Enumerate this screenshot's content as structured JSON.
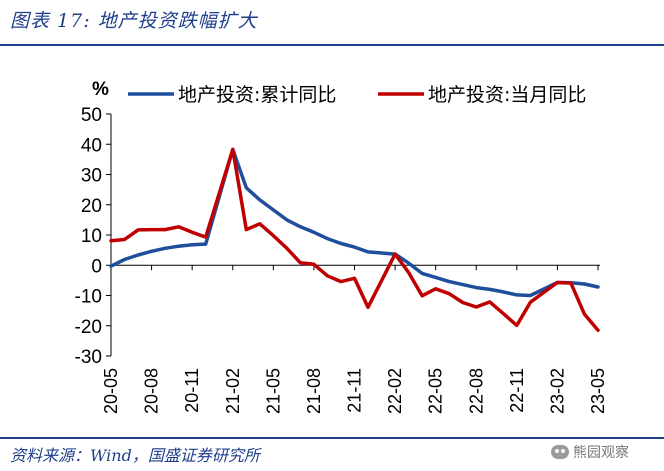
{
  "figure": {
    "title": "图表 17: 地产投资跌幅扩大",
    "source": "资料来源：Wind，国盛证券研究所",
    "watermark": "熊园观察",
    "watermark_icon": "wechat-icon"
  },
  "chart_data": {
    "type": "line",
    "title": "",
    "ylabel": "%",
    "xlabel": "",
    "ylim": [
      -30,
      50
    ],
    "yticks": [
      -30,
      -20,
      -10,
      0,
      10,
      20,
      30,
      40,
      50
    ],
    "grid": false,
    "legend_position": "top",
    "x": [
      "20-05",
      "20-06",
      "20-07",
      "20-08",
      "20-09",
      "20-10",
      "20-11",
      "20-12",
      "21-02",
      "21-03",
      "21-04",
      "21-05",
      "21-06",
      "21-07",
      "21-08",
      "21-09",
      "21-10",
      "21-11",
      "21-12",
      "22-02",
      "22-03",
      "22-04",
      "22-05",
      "22-06",
      "22-07",
      "22-08",
      "22-09",
      "22-10",
      "22-11",
      "22-12",
      "23-02",
      "23-03",
      "23-04",
      "23-05"
    ],
    "x_tick_labels": [
      "20-05",
      "20-08",
      "20-11",
      "21-02",
      "21-05",
      "21-08",
      "21-11",
      "22-02",
      "22-05",
      "22-08",
      "22-11",
      "23-02",
      "23-05"
    ],
    "series": [
      {
        "name": "地产投资:累计同比",
        "color": "#1f4e9c",
        "values": [
          -0.3,
          1.9,
          3.4,
          4.6,
          5.6,
          6.3,
          6.8,
          7.0,
          38.3,
          25.6,
          21.6,
          18.3,
          15.0,
          12.7,
          10.9,
          8.8,
          7.2,
          6.0,
          4.4,
          3.7,
          0.7,
          -2.7,
          -4.0,
          -5.4,
          -6.4,
          -7.4,
          -8.0,
          -8.8,
          -9.8,
          -10.0,
          -5.7,
          -5.8,
          -6.2,
          -7.2
        ]
      },
      {
        "name": "地产投资:当月同比",
        "color": "#c00000",
        "values": [
          8.1,
          8.5,
          11.7,
          11.8,
          11.8,
          12.7,
          10.9,
          9.3,
          38.3,
          11.8,
          13.7,
          9.8,
          5.6,
          0.8,
          0.3,
          -3.5,
          -5.4,
          -4.3,
          -13.9,
          3.7,
          -2.4,
          -10.1,
          -7.8,
          -9.4,
          -12.3,
          -13.8,
          -12.1,
          -16.0,
          -19.9,
          -12.2,
          -5.7,
          -5.9,
          -16.2,
          -21.5
        ]
      }
    ]
  }
}
